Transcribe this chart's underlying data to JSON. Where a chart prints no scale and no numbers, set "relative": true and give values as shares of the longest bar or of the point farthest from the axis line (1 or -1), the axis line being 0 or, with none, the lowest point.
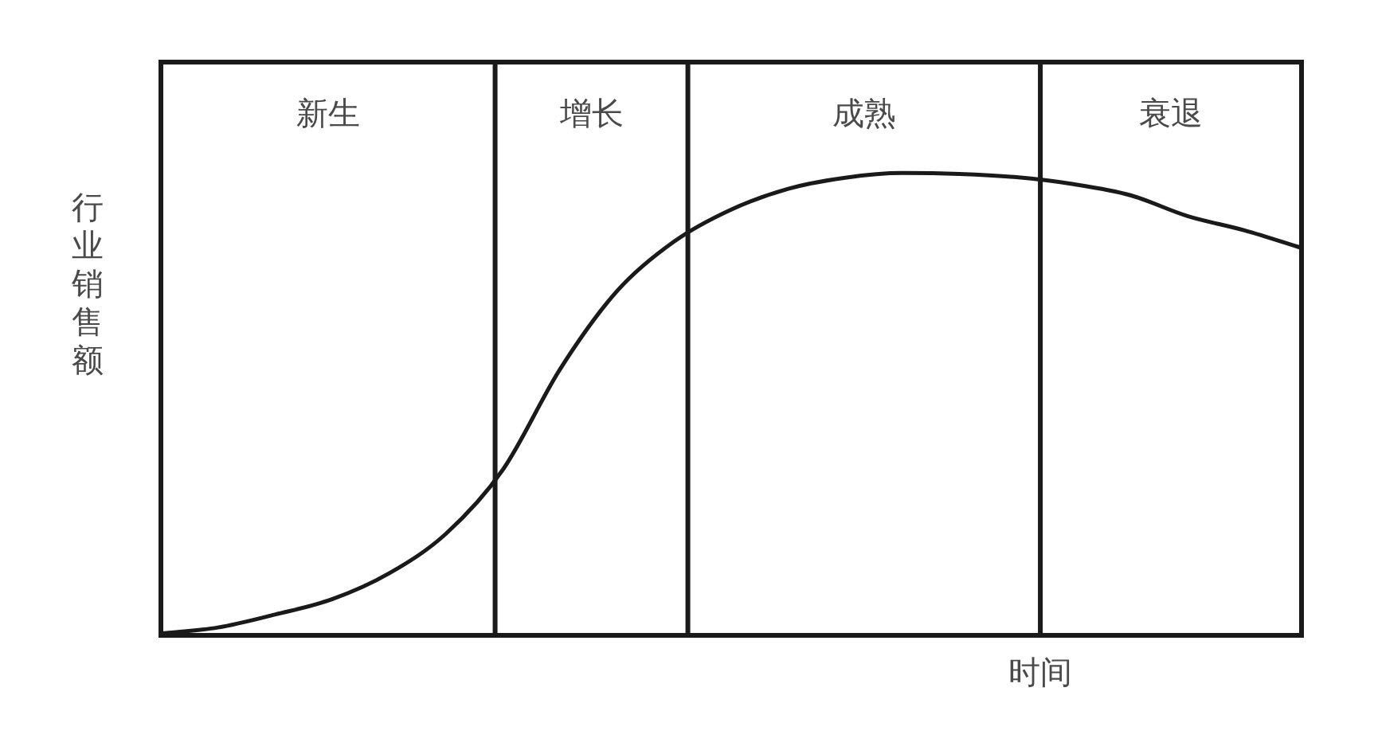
{
  "chart_data": {
    "type": "line",
    "xlabel": "时间",
    "ylabel": "行业销售额",
    "relative": true,
    "marker": "none",
    "categories": [
      null,
      null,
      null,
      null,
      null,
      null,
      null,
      null,
      null,
      null,
      null,
      null,
      null,
      null,
      null,
      null,
      null,
      null,
      null,
      null,
      null
    ],
    "series": [
      {
        "color": "#1a1a1a",
        "values": [
          0.004,
          0.017,
          0.045,
          0.078,
          0.134,
          0.22,
          0.359,
          0.576,
          0.745,
          0.852,
          0.921,
          0.966,
          0.99,
          1,
          0.998,
          0.991,
          0.976,
          0.952,
          0.907,
          0.876,
          0.838
        ]
      }
    ],
    "annotations": [
      "新生",
      "增长",
      "成熟",
      "衰退"
    ]
  }
}
